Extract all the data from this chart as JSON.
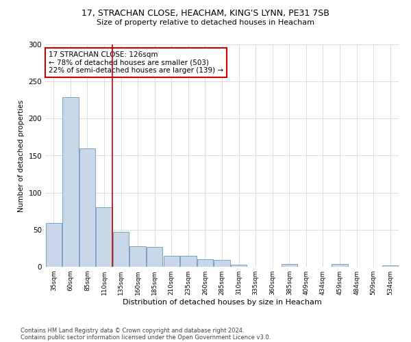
{
  "title": "17, STRACHAN CLOSE, HEACHAM, KING'S LYNN, PE31 7SB",
  "subtitle": "Size of property relative to detached houses in Heacham",
  "xlabel": "Distribution of detached houses by size in Heacham",
  "ylabel": "Number of detached properties",
  "categories": [
    "35sqm",
    "60sqm",
    "85sqm",
    "110sqm",
    "135sqm",
    "160sqm",
    "185sqm",
    "210sqm",
    "235sqm",
    "260sqm",
    "285sqm",
    "310sqm",
    "335sqm",
    "360sqm",
    "385sqm",
    "409sqm",
    "434sqm",
    "459sqm",
    "484sqm",
    "509sqm",
    "534sqm"
  ],
  "values": [
    59,
    229,
    160,
    80,
    47,
    28,
    27,
    15,
    15,
    10,
    9,
    3,
    0,
    0,
    4,
    0,
    0,
    4,
    0,
    0,
    2
  ],
  "bar_color": "#c8d8e8",
  "bar_edge_color": "#6699bb",
  "vline_color": "#cc0000",
  "annotation_text": "17 STRACHAN CLOSE: 126sqm\n← 78% of detached houses are smaller (503)\n22% of semi-detached houses are larger (139) →",
  "annotation_box_color": "#ffffff",
  "annotation_box_edge": "#cc0000",
  "ylim": [
    0,
    300
  ],
  "yticks": [
    0,
    50,
    100,
    150,
    200,
    250,
    300
  ],
  "footer1": "Contains HM Land Registry data © Crown copyright and database right 2024.",
  "footer2": "Contains public sector information licensed under the Open Government Licence v3.0.",
  "bg_color": "#ffffff",
  "grid_color": "#d0d0d0"
}
